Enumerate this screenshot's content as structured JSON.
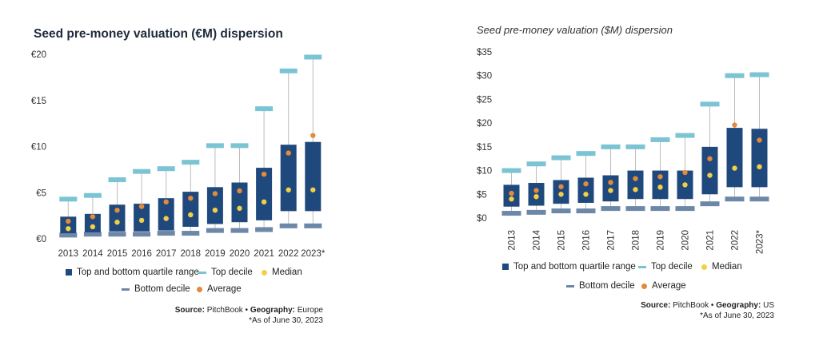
{
  "chart_data": [
    {
      "type": "box",
      "title": "Seed pre-money valuation (€M) dispersion",
      "categories": [
        "2013",
        "2014",
        "2015",
        "2016",
        "2017",
        "2018",
        "2019",
        "2020",
        "2021",
        "2022",
        "2023*"
      ],
      "y_ticks": [
        "€0",
        "€5",
        "€10",
        "€15",
        "€20"
      ],
      "ylim": [
        0,
        20
      ],
      "series": [
        {
          "name": "Top and bottom quartile range",
          "low": [
            0.6,
            0.7,
            0.8,
            0.8,
            0.9,
            1.3,
            1.6,
            1.8,
            2.0,
            3.0,
            3.0
          ],
          "high": [
            2.4,
            2.7,
            3.7,
            3.8,
            4.4,
            5.1,
            5.6,
            6.1,
            7.7,
            10.2,
            10.5
          ]
        },
        {
          "name": "Top decile",
          "values": [
            4.3,
            4.7,
            6.4,
            7.3,
            7.6,
            8.3,
            10.1,
            10.1,
            14.1,
            18.2,
            19.7
          ]
        },
        {
          "name": "Bottom decile",
          "values": [
            0.4,
            0.5,
            0.5,
            0.5,
            0.6,
            0.6,
            0.9,
            0.9,
            1.0,
            1.4,
            1.4
          ]
        },
        {
          "name": "Median",
          "values": [
            1.1,
            1.3,
            1.8,
            2.0,
            2.2,
            2.6,
            3.1,
            3.3,
            4.0,
            5.3,
            5.3
          ]
        },
        {
          "name": "Average",
          "values": [
            1.9,
            2.4,
            3.1,
            3.5,
            4.0,
            4.4,
            4.9,
            5.2,
            7.0,
            9.3,
            11.2
          ]
        }
      ],
      "legend": {
        "box": "Top and bottom quartile range",
        "top": "Top decile",
        "median": "Median",
        "bottom": "Bottom decile",
        "average": "Average"
      },
      "source": {
        "label": "Source:",
        "value": "PitchBook",
        "sep": "•",
        "geo_label": "Geography:",
        "geo_value": "Europe",
        "note": "*As of June 30, 2023"
      },
      "colors": {
        "box": "#1f497d",
        "top": "#7bc4d3",
        "bottom": "#6c87a8",
        "median": "#f3cf45",
        "average": "#e38a3c",
        "whisker": "#bdbdbd"
      }
    },
    {
      "type": "box",
      "title": "Seed pre-money valuation ($M) dispersion",
      "categories": [
        "2013",
        "2014",
        "2015",
        "2016",
        "2017",
        "2018",
        "2019",
        "2020",
        "2021",
        "2022",
        "2023*"
      ],
      "y_ticks": [
        "$0",
        "$5",
        "$10",
        "$15",
        "$20",
        "$25",
        "$30",
        "$35"
      ],
      "ylim": [
        0,
        35
      ],
      "series": [
        {
          "name": "Top and bottom quartile range",
          "low": [
            2.4,
            2.6,
            3.0,
            3.2,
            3.5,
            4.0,
            4.0,
            4.0,
            5.0,
            6.5,
            6.5
          ],
          "high": [
            7.0,
            7.4,
            8.0,
            8.5,
            9.0,
            10.0,
            10.0,
            10.0,
            15.0,
            19.0,
            18.8
          ]
        },
        {
          "name": "Top decile",
          "values": [
            10.0,
            11.4,
            12.7,
            13.6,
            15.0,
            15.0,
            16.5,
            17.4,
            24.0,
            30.0,
            30.2
          ]
        },
        {
          "name": "Bottom decile",
          "values": [
            1.0,
            1.2,
            1.5,
            1.5,
            2.0,
            2.0,
            2.0,
            2.0,
            3.0,
            4.0,
            4.0
          ]
        },
        {
          "name": "Median",
          "values": [
            4.0,
            4.5,
            5.0,
            5.0,
            5.8,
            6.0,
            6.5,
            7.0,
            9.0,
            10.5,
            10.8
          ]
        },
        {
          "name": "Average",
          "values": [
            5.2,
            5.8,
            6.6,
            7.2,
            7.5,
            8.3,
            8.7,
            9.6,
            12.5,
            19.6,
            16.4
          ]
        }
      ],
      "legend": {
        "box": "Top and bottom quartile range",
        "top": "Top decile",
        "median": "Median",
        "bottom": "Bottom decile",
        "average": "Average"
      },
      "source": {
        "label": "Source:",
        "value": "PitchBook",
        "sep": "•",
        "geo_label": "Geography:",
        "geo_value": "US",
        "note": "*As of June 30, 2023"
      },
      "colors": {
        "box": "#1f497d",
        "top": "#7bc4d3",
        "bottom": "#6c87a8",
        "median": "#f3cf45",
        "average": "#e38a3c",
        "whisker": "#bdbdbd"
      }
    }
  ]
}
